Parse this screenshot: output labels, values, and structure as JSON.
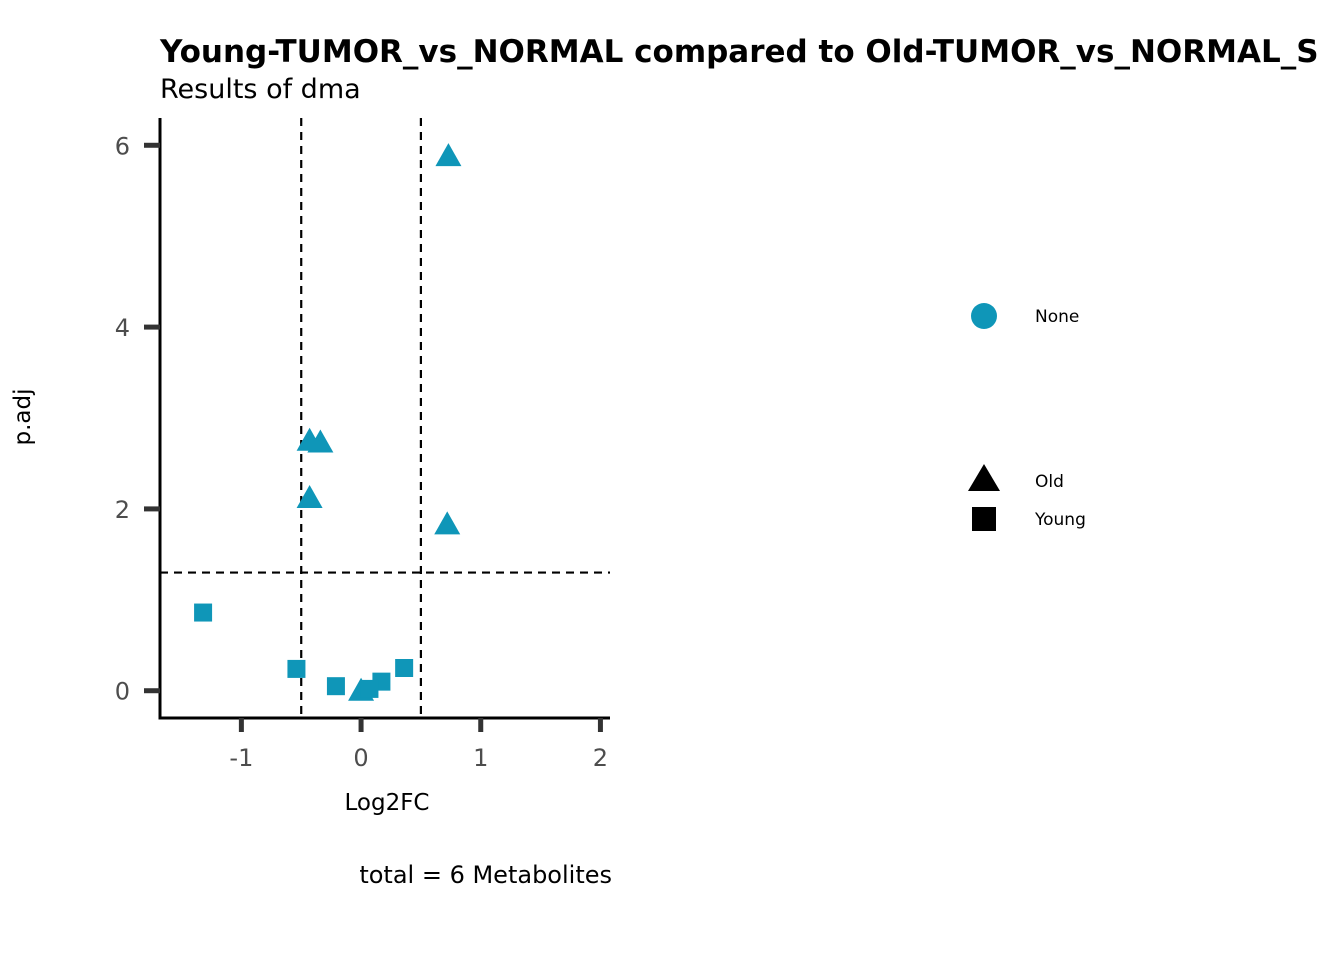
{
  "chart_data": {
    "type": "scatter",
    "title": "Young-TUMOR_vs_NORMAL compared to Old-TUMOR_vs_NORMAL_S",
    "subtitle": "Results of dma",
    "xlabel": "Log2FC",
    "ylabel": "p.adj",
    "caption": "total = 6 Metabolites",
    "xlim": [
      -1.68,
      2.08
    ],
    "ylim": [
      -0.3,
      6.3
    ],
    "x_ticks": [
      -1,
      0,
      1,
      2
    ],
    "x_tick_labels": [
      "-1",
      "0",
      "1",
      "2"
    ],
    "y_ticks": [
      0,
      2,
      4,
      6
    ],
    "y_tick_labels": [
      "0",
      "2",
      "4",
      "6"
    ],
    "vlines": [
      -0.5,
      0.5
    ],
    "hline": 1.3,
    "point_color": "#0f96b8",
    "series": [
      {
        "name": "Old",
        "shape": "triangle",
        "x": [
          0.73,
          -0.43,
          -0.34,
          -0.43,
          0.72,
          0.0
        ],
        "y": [
          5.88,
          2.75,
          2.73,
          2.12,
          1.83,
          0.0
        ]
      },
      {
        "name": "Young",
        "shape": "square",
        "x": [
          -1.32,
          -0.54,
          -0.21,
          0.36,
          0.17,
          0.07
        ],
        "y": [
          0.86,
          0.24,
          0.05,
          0.25,
          0.1,
          0.02
        ]
      }
    ],
    "legend": {
      "color": {
        "label": "None",
        "color": "#0f96b8"
      },
      "shapes": [
        {
          "label": "Old",
          "shape": "triangle"
        },
        {
          "label": "Young",
          "shape": "square"
        }
      ]
    }
  }
}
